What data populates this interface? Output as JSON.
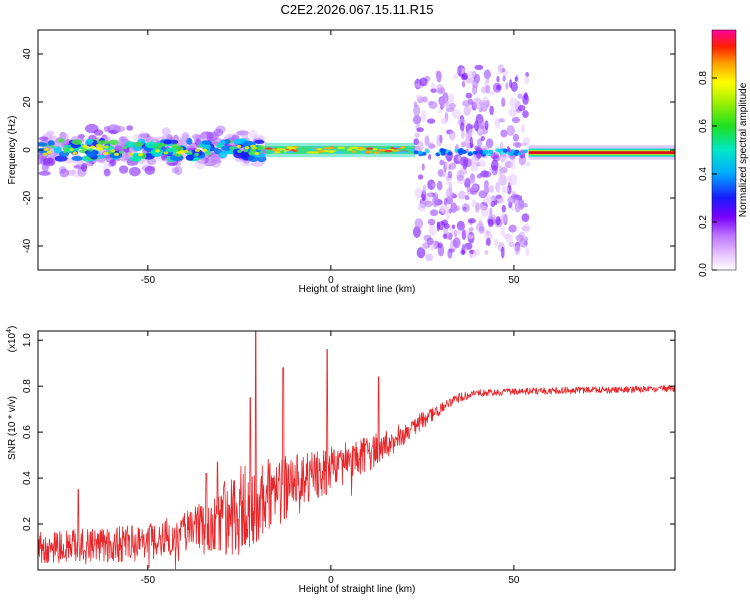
{
  "title": "C2E2.2026.067.15.11.R15",
  "colors": {
    "snr_line": "#e8262a",
    "trace_core": "#e01020",
    "trace_halo": "#10d8d8",
    "scatter_dark": "#6a00ff",
    "scatter_light": "#c9a8ff"
  },
  "chart_data": [
    {
      "type": "heatmap",
      "xlabel": "Height of straight line (km)",
      "ylabel": "Frequency (Hz)",
      "xlim": [
        -80,
        94
      ],
      "ylim": [
        -50,
        50
      ],
      "xticks": [
        -50,
        0,
        50
      ],
      "yticks": [
        -40,
        -20,
        0,
        20,
        40
      ],
      "segments": [
        {
          "x_range": [
            -80,
            -18
          ],
          "y_spread": [
            -10,
            10
          ],
          "peak_amplitude": 0.55,
          "description_value": "noisy band near 0 Hz"
        },
        {
          "x_range": [
            -18,
            23
          ],
          "y_spread": [
            -3,
            3
          ],
          "peak_amplitude": 0.95,
          "description_value": "narrow band near 0 Hz"
        },
        {
          "x_range": [
            23,
            54
          ],
          "y_spread": [
            -45,
            35
          ],
          "peak_amplitude": 0.2,
          "description_value": "wide scattered energy"
        },
        {
          "x_range": [
            54,
            94
          ],
          "y_spread": [
            -3,
            1
          ],
          "peak_amplitude": 1.0,
          "description_value": "steady strong tone near -1 Hz"
        }
      ],
      "colorbar": {
        "label": "Normalized spectral amplitude",
        "range": [
          0.0,
          1.0
        ],
        "ticks": [
          "0.0",
          "0.2",
          "0.4",
          "0.6",
          "0.8"
        ]
      }
    },
    {
      "type": "line",
      "series": [
        {
          "name": "SNR",
          "color": "#e8262a"
        }
      ],
      "xlabel": "Height of straight line (km)",
      "ylabel": "SNR (10 * v/v)",
      "y_multiplier": "(x10",
      "y_multiplier_exp": "4",
      "y_multiplier_close": ")",
      "xlim": [
        -80,
        94
      ],
      "ylim": [
        0,
        1.04
      ],
      "xticks": [
        -50,
        0,
        50
      ],
      "yticks": [
        "0.2",
        "0.4",
        "0.6",
        "0.8",
        "1.0"
      ],
      "trend": [
        [
          -80,
          0.1
        ],
        [
          -60,
          0.11
        ],
        [
          -50,
          0.12
        ],
        [
          -40,
          0.17
        ],
        [
          -30,
          0.22
        ],
        [
          -22,
          0.28
        ],
        [
          -15,
          0.34
        ],
        [
          -5,
          0.4
        ],
        [
          5,
          0.47
        ],
        [
          15,
          0.54
        ],
        [
          22,
          0.62
        ],
        [
          30,
          0.7
        ],
        [
          35,
          0.75
        ],
        [
          40,
          0.77
        ],
        [
          50,
          0.775
        ],
        [
          60,
          0.78
        ],
        [
          70,
          0.782
        ],
        [
          80,
          0.785
        ],
        [
          94,
          0.79
        ]
      ],
      "noise_bands": [
        [
          -80,
          0.07
        ],
        [
          -50,
          0.08
        ],
        [
          -35,
          0.1
        ],
        [
          -25,
          0.2
        ],
        [
          -18,
          0.17
        ],
        [
          -10,
          0.13
        ],
        [
          0,
          0.1
        ],
        [
          10,
          0.08
        ],
        [
          20,
          0.05
        ],
        [
          30,
          0.025
        ],
        [
          40,
          0.015
        ],
        [
          94,
          0.015
        ]
      ],
      "spikes": [
        {
          "x": -20.5,
          "y": 1.04
        },
        {
          "x": -13,
          "y": 0.88
        },
        {
          "x": -1,
          "y": 0.96
        },
        {
          "x": 13,
          "y": 0.84
        },
        {
          "x": -22,
          "y": 0.75
        },
        {
          "x": -69,
          "y": 0.35
        },
        {
          "x": -31,
          "y": 0.47
        },
        {
          "x": -34,
          "y": 0.42
        }
      ]
    }
  ]
}
